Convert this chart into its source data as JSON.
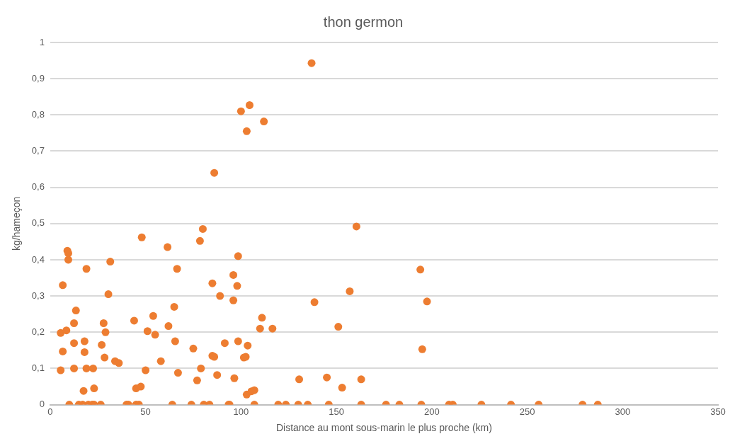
{
  "chart_data": {
    "type": "scatter",
    "title": "thon germon",
    "xlabel": "Distance au mont sous-marin le plus proche (km)",
    "ylabel": "kg/hameçon",
    "xlim": [
      0,
      350
    ],
    "xticks": [
      0,
      50,
      100,
      150,
      200,
      250,
      300,
      350
    ],
    "ylim": [
      0,
      1
    ],
    "yticks": [
      {
        "value": 0,
        "label": "0"
      },
      {
        "value": 0.1,
        "label": "0,1"
      },
      {
        "value": 0.2,
        "label": "0,2"
      },
      {
        "value": 0.3,
        "label": "0,3"
      },
      {
        "value": 0.4,
        "label": "0,4"
      },
      {
        "value": 0.5,
        "label": "0,5"
      },
      {
        "value": 0.6,
        "label": "0,6"
      },
      {
        "value": 0.7,
        "label": "0,7"
      },
      {
        "value": 0.8,
        "label": "0,8"
      },
      {
        "value": 0.9,
        "label": "0,9"
      },
      {
        "value": 1,
        "label": "1"
      }
    ],
    "grid": "y",
    "marker": "circle",
    "series": [
      {
        "color": "#ed7d31",
        "x": [
          5.5,
          5.5,
          6.6,
          6.6,
          8.5,
          9,
          9.5,
          9.5,
          10,
          12.5,
          12.5,
          12.5,
          13.5,
          15,
          17,
          17.5,
          18,
          18,
          19,
          19,
          20,
          22,
          22.5,
          23,
          23,
          26.5,
          27,
          28,
          28.5,
          29,
          30.5,
          31.5,
          34,
          36,
          40,
          41,
          44,
          45,
          45,
          46.5,
          47.5,
          48,
          50,
          51,
          54,
          55,
          58,
          61.5,
          62,
          64,
          65,
          65.5,
          66.5,
          67,
          74,
          75,
          77,
          78.5,
          79,
          80,
          80.5,
          83.5,
          85,
          85,
          86,
          86,
          87.5,
          89,
          91.5,
          93.5,
          94,
          96,
          96,
          96.5,
          98,
          98.5,
          98.5,
          100,
          101.5,
          102.5,
          103,
          103,
          103.5,
          104.5,
          105.5,
          107,
          107,
          110,
          111,
          112,
          116.5,
          119.5,
          123.5,
          130,
          130.5,
          135,
          137,
          138.5,
          145,
          146,
          151,
          153,
          157,
          160.5,
          163,
          163,
          176,
          183,
          194,
          194.5,
          195,
          197.5,
          209,
          211,
          226,
          241.5,
          256,
          279,
          287
        ],
        "values": [
          0.198,
          0.095,
          0.33,
          0.147,
          0.205,
          0.425,
          0.418,
          0.4,
          0,
          0.225,
          0.17,
          0.1,
          0.26,
          0,
          0,
          0.038,
          0.145,
          0.175,
          0.375,
          0.1,
          0,
          0,
          0.1,
          0,
          0.045,
          0,
          0.165,
          0.225,
          0.13,
          0.2,
          0.305,
          0.395,
          0.12,
          0.115,
          0,
          0,
          0.232,
          0,
          0.045,
          0,
          0.05,
          0.462,
          0.095,
          0.203,
          0.245,
          0.193,
          0.12,
          0.435,
          0.217,
          0,
          0.27,
          0.175,
          0.375,
          0.088,
          0,
          0.155,
          0.067,
          0.452,
          0.1,
          0.485,
          0,
          0,
          0.335,
          0.135,
          0.132,
          0.64,
          0.082,
          0.3,
          0.17,
          0,
          0,
          0.358,
          0.288,
          0.073,
          0.328,
          0.41,
          0.175,
          0.81,
          0.13,
          0.132,
          0.755,
          0.028,
          0.163,
          0.827,
          0.037,
          0.04,
          0,
          0.21,
          0.24,
          0.782,
          0.21,
          0,
          0,
          0,
          0.07,
          0,
          0.943,
          0.283,
          0.075,
          0,
          0.215,
          0.047,
          0.313,
          0.492,
          0.07,
          0,
          0,
          0,
          0.373,
          0,
          0.153,
          0.285,
          0,
          0,
          0,
          0,
          0,
          0,
          0
        ]
      }
    ]
  }
}
